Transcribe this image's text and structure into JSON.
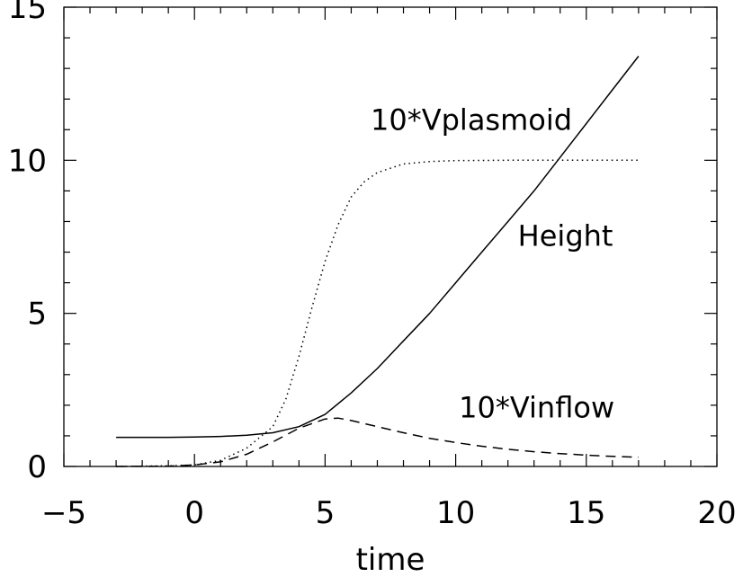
{
  "chart_data": {
    "type": "line",
    "title": "",
    "xlabel": "time",
    "ylabel": "",
    "xlim": [
      -5,
      20
    ],
    "ylim": [
      0,
      15
    ],
    "x_ticks": [
      -5,
      0,
      5,
      10,
      15,
      20
    ],
    "y_ticks": [
      0,
      5,
      10,
      15
    ],
    "x_tick_labels": [
      "−5",
      "0",
      "5",
      "10",
      "15",
      "20"
    ],
    "y_tick_labels": [
      "0",
      "5",
      "10",
      "15"
    ],
    "grid": false,
    "legend": "none",
    "series": [
      {
        "name": "Height",
        "style": "solid",
        "x": [
          -3,
          -1,
          0,
          1,
          2,
          3,
          4,
          5,
          6,
          7,
          8,
          9,
          10,
          11,
          12,
          13,
          14,
          15,
          16,
          17
        ],
        "y": [
          0.95,
          0.95,
          0.96,
          0.98,
          1.02,
          1.1,
          1.3,
          1.7,
          2.4,
          3.2,
          4.1,
          5.0,
          6.0,
          7.0,
          8.0,
          9.0,
          10.1,
          11.2,
          12.3,
          13.4
        ]
      },
      {
        "name": "10*Vplasmoid",
        "style": "dotted",
        "x": [
          -3,
          -1,
          0,
          1,
          2,
          3,
          3.5,
          4,
          4.5,
          5,
          5.5,
          6,
          6.5,
          7,
          8,
          9,
          10,
          12,
          15,
          17
        ],
        "y": [
          0.0,
          0.02,
          0.05,
          0.2,
          0.6,
          1.3,
          2.2,
          3.6,
          5.2,
          6.7,
          7.9,
          8.8,
          9.3,
          9.6,
          9.88,
          9.96,
          9.99,
          10.0,
          10.0,
          10.0
        ]
      },
      {
        "name": "10*Vinflow",
        "style": "dashed",
        "x": [
          -3,
          -1,
          0,
          1,
          2,
          3,
          4,
          5,
          5.5,
          6,
          7,
          8,
          9,
          10,
          11,
          12,
          13,
          14,
          15,
          16,
          17
        ],
        "y": [
          0.0,
          0.01,
          0.05,
          0.15,
          0.4,
          0.8,
          1.25,
          1.55,
          1.58,
          1.5,
          1.3,
          1.1,
          0.92,
          0.78,
          0.66,
          0.56,
          0.48,
          0.42,
          0.37,
          0.33,
          0.3
        ]
      }
    ],
    "annotations": [
      {
        "text": "10*Vplasmoid",
        "x": 10.6,
        "y": 11.0
      },
      {
        "text": "Height",
        "x": 14.2,
        "y": 7.2
      },
      {
        "text": "10*Vinflow",
        "x": 13.1,
        "y": 1.6
      }
    ]
  }
}
